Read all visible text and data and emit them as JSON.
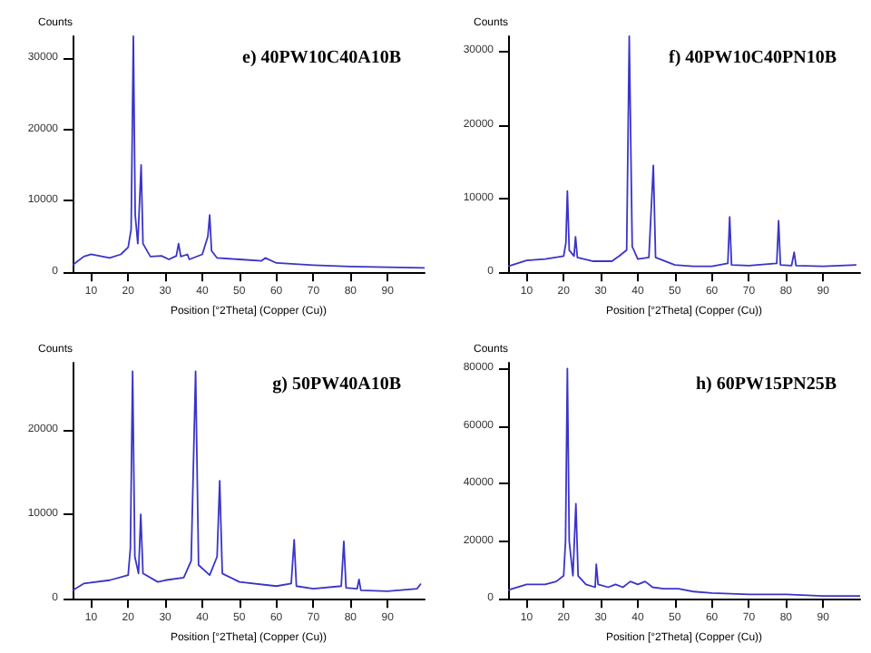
{
  "chart_data": [
    {
      "type": "line",
      "title": "e) 40PW10C40A10B",
      "xlabel": "Position [°2Theta] (Copper (Cu))",
      "ylabel": "Counts",
      "xlim": [
        5,
        100
      ],
      "xticks": [
        10,
        20,
        30,
        40,
        50,
        60,
        70,
        80,
        90
      ],
      "ylim": [
        0,
        33000
      ],
      "yticks": [
        0,
        10000,
        20000,
        30000
      ],
      "grid": false,
      "marker": "none",
      "line_style": "solid",
      "series": [
        {
          "color": "#3a34c8",
          "x": [
            5,
            8,
            10,
            15,
            18,
            20,
            20.8,
            21.4,
            21.9,
            22.6,
            23.5,
            24,
            26,
            29,
            31,
            33,
            33.6,
            34.2,
            36,
            36.5,
            40,
            41.5,
            42,
            42.5,
            44,
            50,
            56,
            57,
            60,
            70,
            80,
            90,
            100
          ],
          "values": [
            1000,
            2200,
            2500,
            2000,
            2500,
            3500,
            6000,
            33000,
            8000,
            4000,
            15000,
            4000,
            2200,
            2300,
            1800,
            2300,
            4000,
            2200,
            2500,
            1800,
            2500,
            5000,
            8000,
            3000,
            2000,
            1800,
            1600,
            2000,
            1300,
            1000,
            800,
            700,
            600
          ]
        }
      ]
    },
    {
      "type": "line",
      "title": "f) 40PW10C40PN10B",
      "xlabel": "Position [°2Theta] (Copper (Cu))",
      "ylabel": "Counts",
      "xlim": [
        5,
        100
      ],
      "xticks": [
        10,
        20,
        30,
        40,
        50,
        60,
        70,
        80,
        90
      ],
      "ylim": [
        0,
        32000
      ],
      "yticks": [
        0,
        10000,
        20000,
        30000
      ],
      "grid": false,
      "marker": "none",
      "line_style": "solid",
      "series": [
        {
          "color": "#3a34c8",
          "x": [
            5,
            10,
            15,
            20,
            20.6,
            21,
            21.5,
            22.8,
            23.2,
            23.7,
            28,
            33,
            35,
            37,
            37.7,
            38.5,
            40,
            43,
            44.2,
            44.8,
            50,
            55,
            60,
            64.3,
            64.8,
            65.3,
            70,
            77.5,
            78,
            78.5,
            81.5,
            82.2,
            82.7,
            90,
            99
          ],
          "values": [
            800,
            1600,
            1800,
            2200,
            4000,
            11000,
            3000,
            2200,
            4800,
            2000,
            1500,
            1500,
            2200,
            3000,
            32000,
            3500,
            1800,
            2000,
            14500,
            2000,
            1000,
            800,
            800,
            1200,
            7500,
            1000,
            900,
            1200,
            7000,
            1000,
            900,
            2700,
            900,
            800,
            1000
          ]
        }
      ]
    },
    {
      "type": "line",
      "title": "g) 50PW40A10B",
      "xlabel": "Position [°2Theta] (Copper (Cu))",
      "ylabel": "Counts",
      "xlim": [
        5,
        100
      ],
      "xticks": [
        10,
        20,
        30,
        40,
        50,
        60,
        70,
        80,
        90
      ],
      "ylim": [
        0,
        28000
      ],
      "yticks": [
        0,
        10000,
        20000
      ],
      "grid": false,
      "marker": "none",
      "line_style": "solid",
      "series": [
        {
          "color": "#3a34c8",
          "x": [
            5,
            8,
            15,
            20,
            20.6,
            21.2,
            21.8,
            22.8,
            23.4,
            24,
            28,
            30,
            35,
            37,
            38.2,
            39,
            42,
            44,
            44.7,
            45.4,
            50,
            60,
            64,
            64.8,
            65.4,
            70,
            77.5,
            78.2,
            78.8,
            81.8,
            82.3,
            82.8,
            90,
            98,
            99
          ],
          "values": [
            1000,
            1800,
            2200,
            2800,
            6000,
            27000,
            5000,
            3000,
            10000,
            3000,
            2000,
            2200,
            2500,
            4500,
            27000,
            4000,
            2800,
            5000,
            14000,
            3000,
            2000,
            1500,
            1800,
            7000,
            1500,
            1200,
            1500,
            6800,
            1300,
            1200,
            2300,
            1000,
            900,
            1200,
            1800
          ]
        }
      ]
    },
    {
      "type": "line",
      "title": "h) 60PW15PN25B",
      "xlabel": "Position [°2Theta] (Copper (Cu))",
      "ylabel": "Counts",
      "xlim": [
        5,
        100
      ],
      "xticks": [
        10,
        20,
        30,
        40,
        50,
        60,
        70,
        80,
        90
      ],
      "ylim": [
        0,
        82000
      ],
      "yticks": [
        0,
        20000,
        40000,
        60000,
        80000
      ],
      "grid": false,
      "marker": "none",
      "line_style": "solid",
      "series": [
        {
          "color": "#3a34c8",
          "x": [
            5,
            10,
            15,
            18,
            20,
            20.5,
            21,
            21.5,
            22.5,
            23.3,
            23.9,
            26,
            28.5,
            28.8,
            29.3,
            32,
            34,
            36,
            38,
            40,
            42,
            44,
            47,
            51,
            55,
            60,
            70,
            80,
            90,
            100
          ],
          "values": [
            3000,
            5000,
            5000,
            6000,
            8000,
            20000,
            80000,
            20000,
            8000,
            33000,
            8000,
            5000,
            4000,
            12000,
            5000,
            4000,
            5000,
            4000,
            6000,
            5000,
            6000,
            4000,
            3500,
            3500,
            2500,
            2000,
            1500,
            1500,
            1000,
            1000
          ]
        }
      ]
    }
  ]
}
